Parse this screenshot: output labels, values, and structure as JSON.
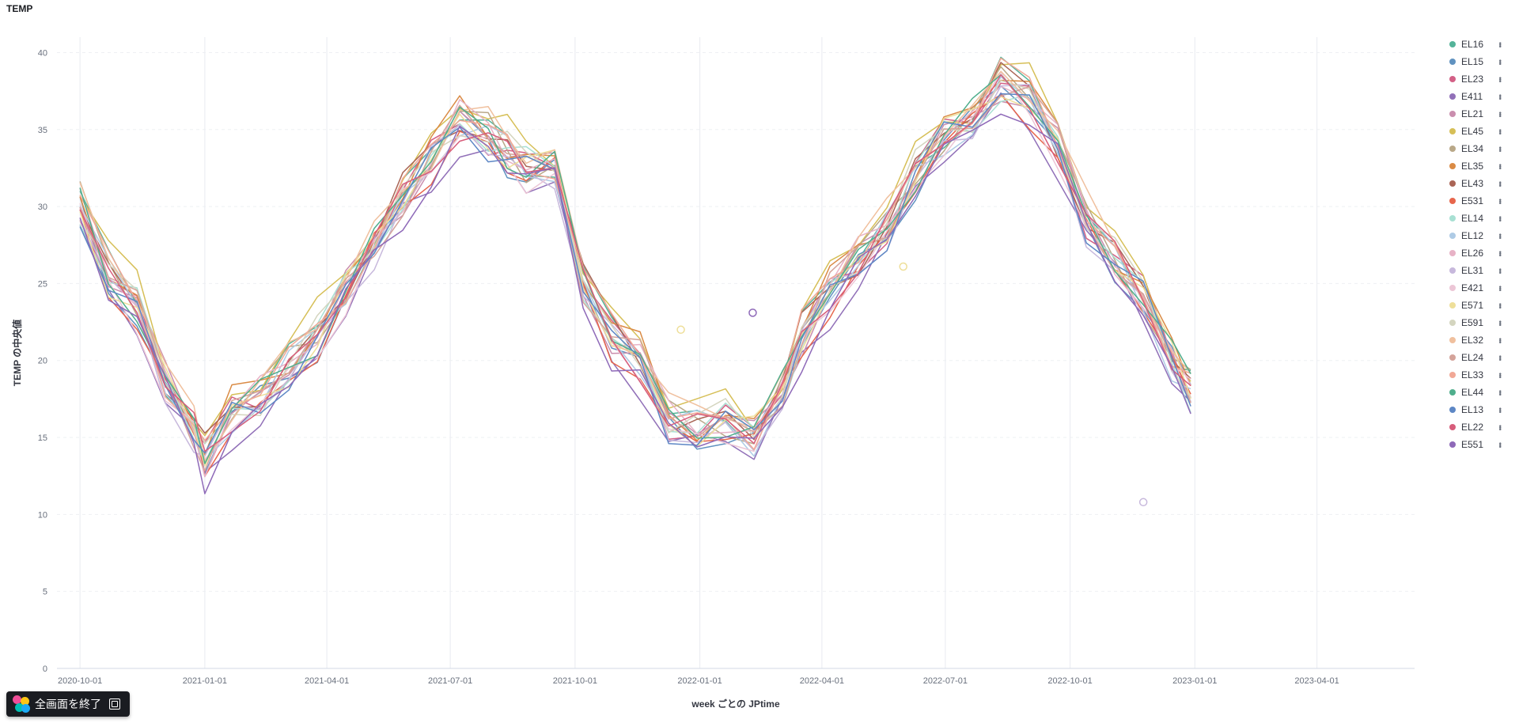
{
  "panel_title": "TEMP",
  "exit_button_label": "全画面を終了",
  "chart_data": {
    "type": "line",
    "title": "TEMP",
    "xlabel": "week ごとの JPtime",
    "ylabel": "TEMP の中央値",
    "ylim": [
      0,
      41
    ],
    "yticks": [
      0,
      5,
      10,
      15,
      20,
      25,
      30,
      35,
      40
    ],
    "xlim": [
      "2020-09-14",
      "2023-06-12"
    ],
    "xticks": [
      "2020-10-01",
      "2021-01-01",
      "2021-04-01",
      "2021-07-01",
      "2021-10-01",
      "2022-01-01",
      "2022-04-01",
      "2022-07-01",
      "2022-10-01",
      "2023-01-01",
      "2023-04-01"
    ],
    "grid": true,
    "legend_position": "right",
    "base": {
      "dates": [
        "2020-10-01",
        "2020-10-22",
        "2020-11-12",
        "2020-12-03",
        "2020-12-24",
        "2021-01-01",
        "2021-01-21",
        "2021-02-11",
        "2021-03-04",
        "2021-03-25",
        "2021-04-15",
        "2021-05-06",
        "2021-05-27",
        "2021-06-17",
        "2021-07-08",
        "2021-07-29",
        "2021-08-12",
        "2021-08-26",
        "2021-09-16",
        "2021-10-07",
        "2021-10-28",
        "2021-11-18",
        "2021-12-09",
        "2021-12-30",
        "2022-01-20",
        "2022-02-10",
        "2022-03-03",
        "2022-03-17",
        "2022-04-07",
        "2022-04-28",
        "2022-05-19",
        "2022-06-09",
        "2022-06-30",
        "2022-07-21",
        "2022-08-11",
        "2022-09-01",
        "2022-09-22",
        "2022-10-13",
        "2022-11-03",
        "2022-11-24",
        "2022-12-15",
        "2022-12-29"
      ],
      "values": [
        30.0,
        25.5,
        23.5,
        18.5,
        15.5,
        13.5,
        16.5,
        17.5,
        19.5,
        21.5,
        24.5,
        27.5,
        30.5,
        33.0,
        35.5,
        34.5,
        33.5,
        32.5,
        32.5,
        25.0,
        21.5,
        20.0,
        16.0,
        15.5,
        16.0,
        15.0,
        18.0,
        21.5,
        24.5,
        26.5,
        28.5,
        32.0,
        34.5,
        35.5,
        38.0,
        37.0,
        34.0,
        29.0,
        26.5,
        24.0,
        20.0,
        18.0
      ]
    },
    "series": [
      {
        "name": "EL16",
        "color": "#54b399",
        "offset": 0.5
      },
      {
        "name": "EL15",
        "color": "#6092c0",
        "offset": -0.3
      },
      {
        "name": "EL23",
        "color": "#d36086",
        "offset": 0.2
      },
      {
        "name": "E411",
        "color": "#9170b8",
        "offset": -1.2
      },
      {
        "name": "EL21",
        "color": "#ca8eae",
        "offset": 0.1
      },
      {
        "name": "EL45",
        "color": "#d6bf57",
        "offset": 1.3
      },
      {
        "name": "EL34",
        "color": "#b9a888",
        "offset": 0.3
      },
      {
        "name": "EL35",
        "color": "#da8b45",
        "offset": 0.6
      },
      {
        "name": "EL43",
        "color": "#aa6556",
        "offset": 0.4
      },
      {
        "name": "E531",
        "color": "#e7664c",
        "offset": -0.6
      },
      {
        "name": "EL14",
        "color": "#a8e0d3",
        "offset": 0.0
      },
      {
        "name": "EL12",
        "color": "#aecbe5",
        "offset": -0.1
      },
      {
        "name": "EL26",
        "color": "#e7b2c6",
        "offset": 0.2
      },
      {
        "name": "EL31",
        "color": "#c7b8dc",
        "offset": -0.4
      },
      {
        "name": "E421",
        "color": "#ecc6d6",
        "offset": -0.5
      },
      {
        "name": "E571",
        "color": "#eedf99",
        "offset": 0.0
      },
      {
        "name": "E591",
        "color": "#d4d5bf",
        "offset": 0.3
      },
      {
        "name": "EL32",
        "color": "#f0c09e",
        "offset": 0.8
      },
      {
        "name": "EL24",
        "color": "#d4a39a",
        "offset": 0.1
      },
      {
        "name": "EL33",
        "color": "#f1a896",
        "offset": 0.5
      },
      {
        "name": "EL44",
        "color": "#4fae8c",
        "offset": 0.2
      },
      {
        "name": "EL13",
        "color": "#5d87c5",
        "offset": -0.2
      },
      {
        "name": "EL22",
        "color": "#d75d7b",
        "offset": 0.0
      },
      {
        "name": "E551",
        "color": "#8e69b8",
        "offset": -0.9
      }
    ],
    "isolated_points": [
      {
        "series": "E571",
        "date": "2021-12-18",
        "value": 22.0
      },
      {
        "series": "E551",
        "date": "2022-02-09",
        "value": 23.1
      },
      {
        "series": "E571",
        "date": "2022-05-31",
        "value": 26.1
      },
      {
        "series": "EL31",
        "date": "2022-11-24",
        "value": 10.8
      }
    ]
  }
}
